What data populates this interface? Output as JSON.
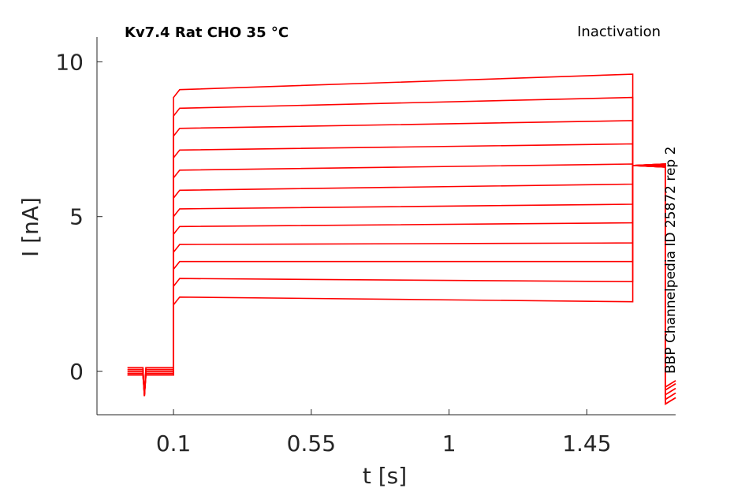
{
  "chart_data": {
    "type": "line",
    "title": "Kv7.4  Rat  CHO  35 °C",
    "protocol_label": "Inactivation",
    "side_label": "BBP Channelpedia ID 25872 rep 2",
    "xlabel": "t [s]",
    "ylabel": "I [nA]",
    "xlim": [
      -0.15,
      1.74
    ],
    "ylim": [
      -1.4,
      10.8
    ],
    "x_ticks": [
      0.1,
      0.55,
      1,
      1.45
    ],
    "x_tick_labels": [
      "0.1",
      "0.55",
      "1",
      "1.45"
    ],
    "y_ticks": [
      0,
      5,
      10
    ],
    "y_tick_labels": [
      "0",
      "5",
      "10"
    ],
    "grid": false,
    "legend": "none",
    "color": "#ff0000",
    "sweeps": {
      "baseline_start": -0.05,
      "step_start": 0.1,
      "step_end": 1.6,
      "second_step_end": 1.707,
      "tail_end": 1.74,
      "step_currents_start": [
        9.1,
        8.5,
        7.85,
        7.15,
        6.5,
        5.85,
        5.25,
        4.68,
        4.1,
        3.55,
        3.0,
        2.4
      ],
      "step_currents_end": [
        9.6,
        8.85,
        8.1,
        7.35,
        6.7,
        6.05,
        5.4,
        4.8,
        4.15,
        3.55,
        2.9,
        2.25
      ],
      "second_step_current": 6.65,
      "tail_currents": [
        -0.85,
        -0.7,
        -0.55,
        -0.4,
        -0.3
      ]
    }
  }
}
